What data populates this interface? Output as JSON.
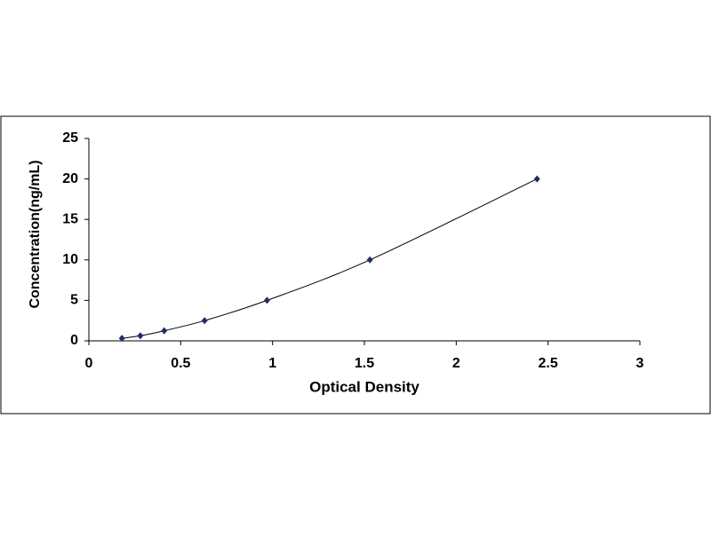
{
  "chart_data": {
    "type": "scatter",
    "xlabel": "Optical Density",
    "ylabel": "Concentration(ng/mL)",
    "x": [
      0.18,
      0.28,
      0.41,
      0.63,
      0.97,
      1.53,
      2.44
    ],
    "series": [
      {
        "color": "#1f2d6b",
        "values": [
          0.31,
          0.625,
          1.25,
          2.5,
          5,
          10,
          20
        ]
      }
    ],
    "xlim": [
      0,
      3
    ],
    "xticks": [
      0,
      0.5,
      1,
      1.5,
      2,
      2.5,
      3
    ],
    "ylim": [
      0,
      25
    ],
    "yticks": [
      0,
      5,
      10,
      15,
      20,
      25
    ],
    "grid": false
  }
}
